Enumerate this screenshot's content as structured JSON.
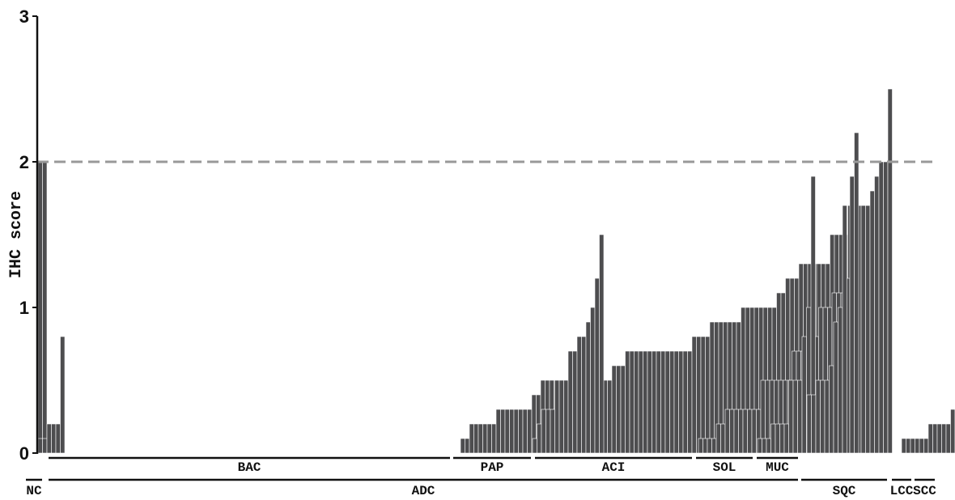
{
  "chart_data": {
    "type": "bar",
    "ylabel": "IHC score",
    "ylim": [
      0,
      3
    ],
    "yticks": [
      0,
      1,
      2,
      3
    ],
    "threshold": 2,
    "grid": false,
    "colors": {
      "bar": "#4d4d4f",
      "bar_edge": "#ffffff",
      "threshold": "#999999",
      "axis": "#111111"
    },
    "series": [
      {
        "name": "NC",
        "values": [
          2.0,
          2.0
        ]
      },
      {
        "name": "BAC",
        "values": [
          0.1,
          0.1,
          0.2,
          0.2,
          0.2,
          0.2,
          0.2,
          0.2,
          0.3,
          0.3,
          0.3,
          0.3,
          0.3,
          0.3,
          0.3,
          0.3,
          0.4,
          0.4,
          0.5,
          0.5,
          0.5,
          0.5,
          0.5,
          0.5,
          0.5,
          0.5,
          0.5,
          0.5,
          0.5,
          0.5,
          0.5,
          0.5,
          0.5,
          0.5,
          0.6,
          0.6,
          0.6,
          0.7,
          0.7,
          0.7,
          0.7,
          0.7,
          0.7,
          0.7,
          0.7,
          0.7,
          0.7,
          0.7,
          0.7,
          0.7,
          0.7,
          0.7,
          0.8,
          0.8,
          0.8,
          0.8,
          0.9,
          0.9,
          0.9,
          0.9,
          0.9,
          0.9,
          0.9,
          1.0,
          1.0,
          1.0,
          1.0,
          1.0,
          1.0,
          1.0,
          1.0,
          1.1,
          1.1,
          1.2,
          1.2,
          1.2,
          1.3,
          1.3,
          1.3,
          1.3,
          1.3,
          1.3,
          1.3,
          1.5,
          1.5,
          1.5,
          1.5,
          1.7,
          1.7,
          1.7,
          1.7,
          1.7,
          1.8,
          1.9,
          2.0,
          2.0,
          2.5
        ]
      },
      {
        "name": "PAP",
        "values": [
          0.1,
          0.2,
          0.3,
          0.3,
          0.3,
          0.5,
          0.5,
          0.5,
          0.7,
          0.7,
          0.8,
          0.8,
          0.9,
          1.0,
          1.2,
          1.5
        ]
      },
      {
        "name": "ACI",
        "values": [
          0.1,
          0.1,
          0.1,
          0.1,
          0.2,
          0.2,
          0.3,
          0.3,
          0.3,
          0.3,
          0.3,
          0.3,
          0.3,
          0.3,
          0.5,
          0.5,
          0.5,
          0.5,
          0.5,
          0.5,
          0.5,
          0.7,
          0.7,
          0.7,
          0.75,
          0.8,
          0.8,
          1.0,
          1.0,
          1.0,
          1.1,
          1.1,
          1.1,
          1.2,
          1.9,
          2.2
        ]
      },
      {
        "name": "SOL",
        "values": [
          0.1,
          0.1,
          0.1,
          0.2,
          0.2,
          0.2,
          0.2,
          0.5,
          0.5,
          0.5,
          0.8,
          1.0,
          1.9
        ]
      },
      {
        "name": "MUC",
        "values": [
          0.4,
          0.4,
          0.5,
          0.5,
          0.5,
          0.6,
          0.9,
          1.0,
          1.7
        ]
      },
      {
        "name": "SQC",
        "values": [
          0.1,
          0.1,
          0.1,
          0.1,
          0.1,
          0.1,
          0.2,
          0.2,
          0.2,
          0.2,
          0.2,
          0.3,
          0.3,
          0.3,
          0.4,
          0.5,
          1.5,
          1.6
        ]
      },
      {
        "name": "LCC",
        "values": [
          0.1,
          0.1,
          0.2,
          0.2,
          0.2,
          0.8
        ]
      }
    ],
    "group_labels": [
      {
        "label": "BAC",
        "row": 1
      },
      {
        "label": "PAP",
        "row": 1
      },
      {
        "label": "ACI",
        "row": 1
      },
      {
        "label": "SOL",
        "row": 1
      },
      {
        "label": "MUC",
        "row": 1
      },
      {
        "label": "NC",
        "row": 2
      },
      {
        "label": "ADC",
        "row": 2
      },
      {
        "label": "SQC",
        "row": 2
      },
      {
        "label": "LCC",
        "row": 2
      },
      {
        "label": "SCC",
        "row": 2
      }
    ]
  }
}
